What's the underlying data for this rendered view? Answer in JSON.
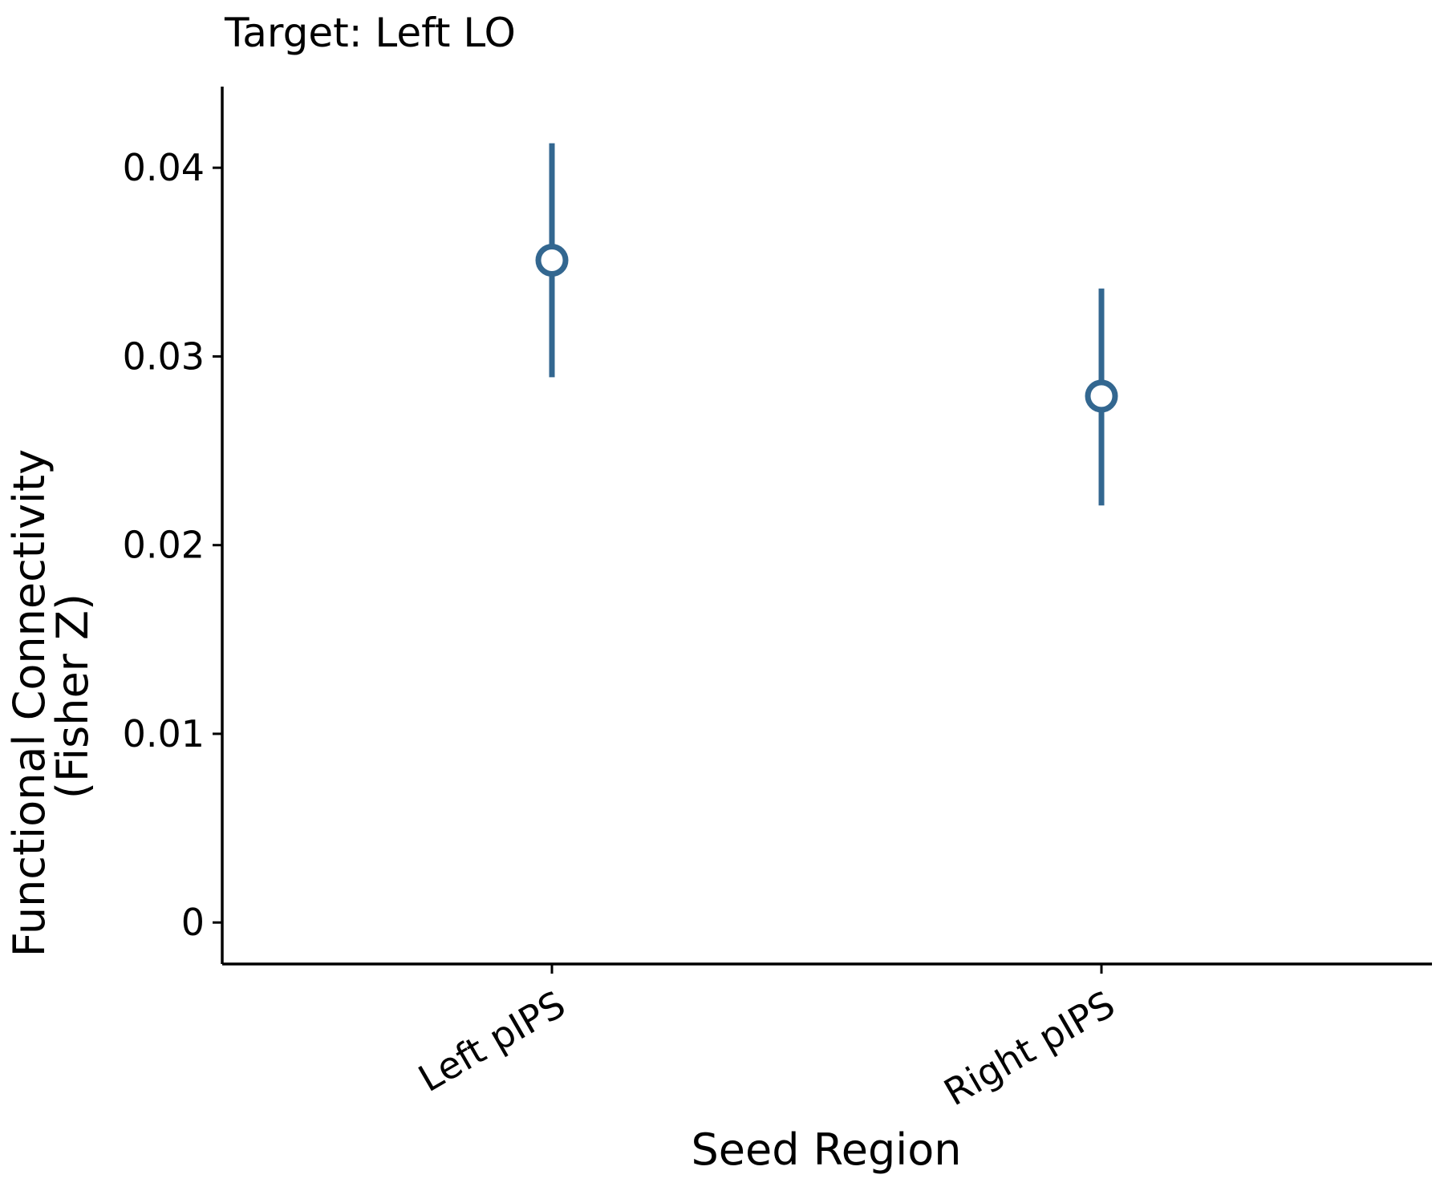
{
  "chart_data": {
    "type": "scatter",
    "title": "Target: Left LO",
    "xlabel": "Seed Region",
    "ylabel": [
      "Functional Connectivity",
      "(Fisher Z)"
    ],
    "categories": [
      "Left pIPS",
      "Right pIPS"
    ],
    "series": [
      {
        "name": "Functional Connectivity",
        "color": "#336790",
        "values": [
          0.0351,
          0.0279
        ],
        "err_low": [
          0.0289,
          0.0221
        ],
        "err_high": [
          0.0413,
          0.0336
        ]
      }
    ],
    "y_ticks": [
      0,
      0.01,
      0.02,
      0.03,
      0.04
    ],
    "y_tick_labels": [
      "0",
      "0.01",
      "0.02",
      "0.03",
      "0.04"
    ],
    "ylim": [
      -0.0022,
      0.0443
    ],
    "grid": false
  }
}
